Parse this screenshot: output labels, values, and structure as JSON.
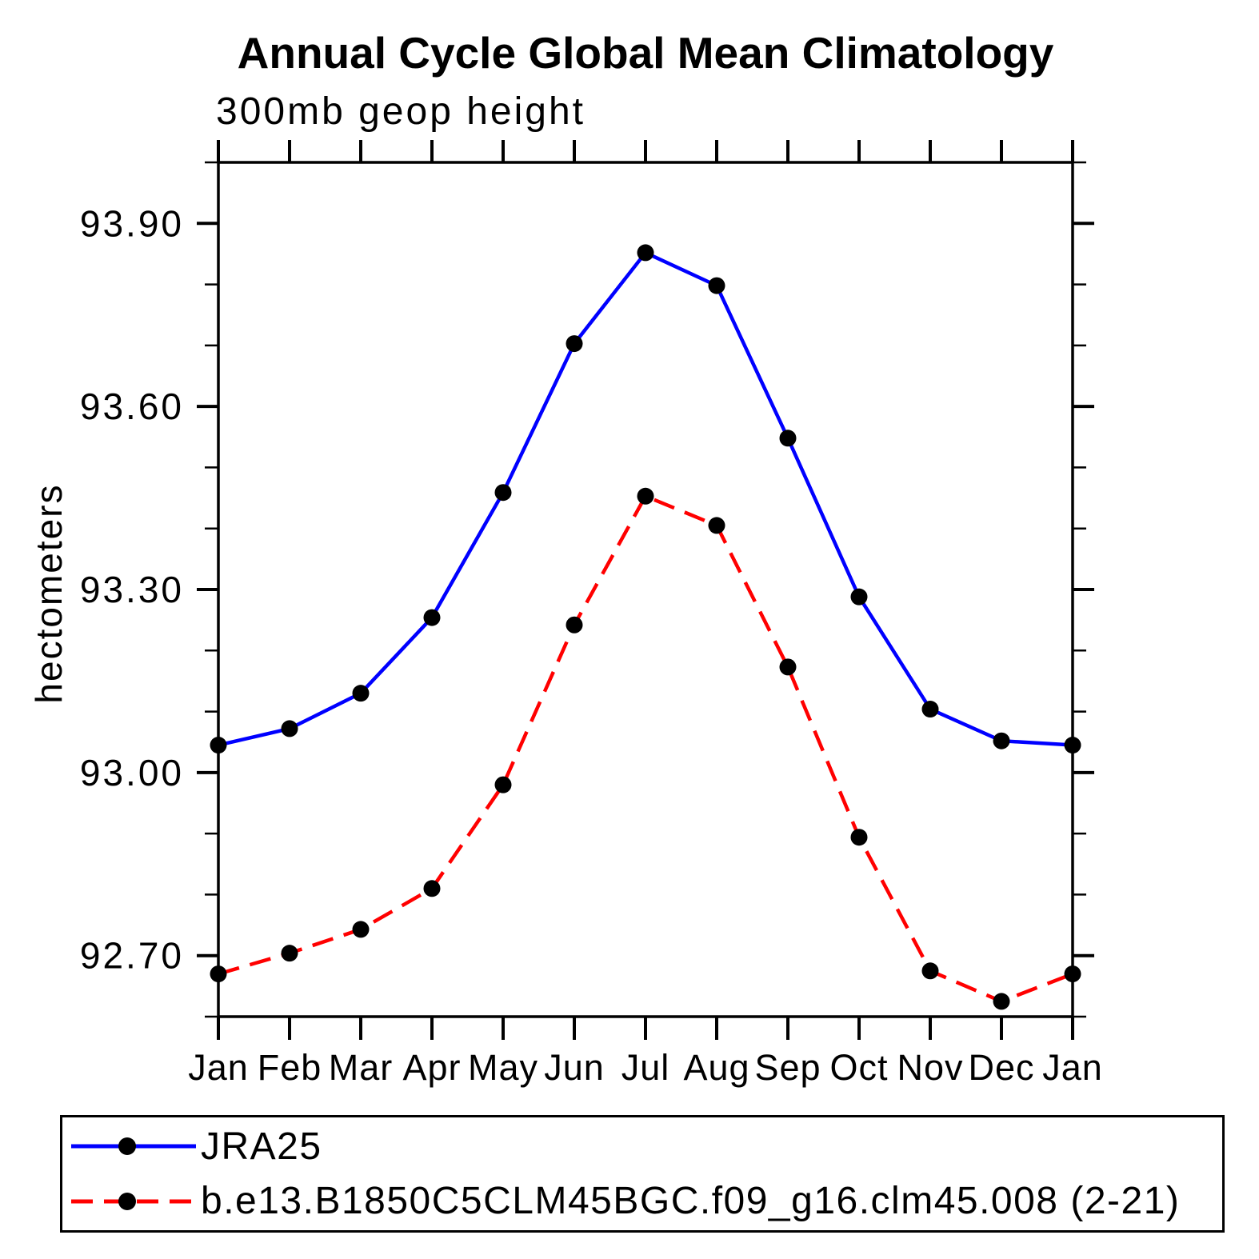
{
  "title": "Annual Cycle Global Mean Climatology",
  "subtitle": "300mb geop height",
  "chart_data": {
    "type": "line",
    "x_categories": [
      "Jan",
      "Feb",
      "Mar",
      "Apr",
      "May",
      "Jun",
      "Jul",
      "Aug",
      "Sep",
      "Oct",
      "Nov",
      "Dec",
      "Jan"
    ],
    "ylabel": "hectometers",
    "ylim": [
      92.6,
      94.0
    ],
    "y_major_ticks": [
      92.7,
      93.0,
      93.3,
      93.6,
      93.9
    ],
    "y_major_labels": [
      "92.70",
      "93.00",
      "93.30",
      "93.60",
      "93.90"
    ],
    "y_minor_step": 0.1,
    "grid": false,
    "legend_position": "bottom",
    "frame_color": "#000000",
    "marker_color": "#000000",
    "series": [
      {
        "name": "JRA25",
        "color": "#0000ff",
        "style": "solid",
        "marker": "circle",
        "values": [
          93.045,
          93.072,
          93.13,
          93.254,
          93.459,
          93.703,
          93.852,
          93.798,
          93.548,
          93.288,
          93.104,
          93.052,
          93.045
        ]
      },
      {
        "name": "b.e13.B1850C5CLM45BGC.f09_g16.clm45.008 (2-21)",
        "color": "#ff0000",
        "style": "dashed",
        "marker": "circle",
        "values": [
          92.67,
          92.704,
          92.743,
          92.81,
          92.98,
          93.242,
          93.453,
          93.405,
          93.173,
          92.894,
          92.675,
          92.625,
          92.67
        ]
      }
    ]
  }
}
